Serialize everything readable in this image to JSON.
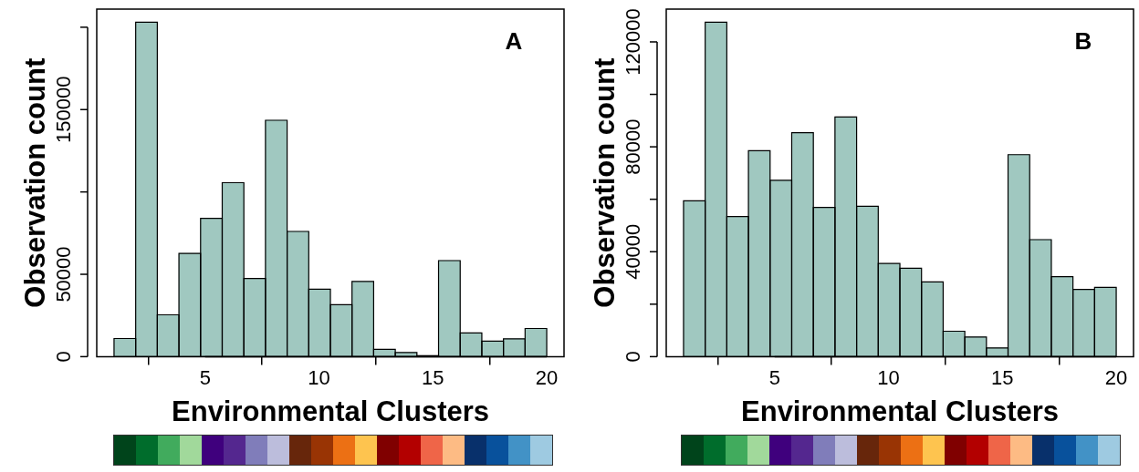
{
  "chart_data": [
    {
      "type": "histogram",
      "title": "A",
      "xlabel": "Environmental Clusters",
      "ylabel": "Observation count",
      "color": "#a0c8c0",
      "bins": [
        1,
        1.95,
        2.9,
        3.85,
        4.8,
        5.75,
        6.7,
        7.65,
        8.6,
        9.55,
        10.5,
        11.45,
        12.4,
        13.35,
        14.3,
        15.25,
        16.2,
        17.15,
        18.1,
        19.05,
        20
      ],
      "values": [
        11000,
        203000,
        25400,
        62700,
        84000,
        105600,
        47500,
        143500,
        76000,
        41000,
        31500,
        45600,
        4400,
        2500,
        600,
        58300,
        14400,
        9400,
        10800,
        17100
      ],
      "xlim": [
        0.24,
        20.76
      ],
      "xticks": [
        5,
        10,
        15,
        20
      ],
      "ylim": [
        0,
        211000
      ],
      "yticks": [
        0,
        50000,
        {
          "value": 100000,
          "label": null
        },
        150000,
        {
          "value": 200000,
          "label": null
        }
      ]
    },
    {
      "type": "histogram",
      "title": "B",
      "xlabel": "Environmental Clusters",
      "ylabel": "Observation count",
      "color": "#a0c8c0",
      "bins": [
        1,
        1.95,
        2.9,
        3.85,
        4.8,
        5.75,
        6.7,
        7.65,
        8.6,
        9.55,
        10.5,
        11.45,
        12.4,
        13.35,
        14.3,
        15.25,
        16.2,
        17.15,
        18.1,
        19.05,
        20
      ],
      "values": [
        59400,
        127500,
        53400,
        78500,
        67200,
        85400,
        56900,
        91400,
        57300,
        35500,
        33700,
        28500,
        9700,
        7500,
        3300,
        77000,
        44600,
        30500,
        25600,
        26400
      ],
      "xlim": [
        0.24,
        20.76
      ],
      "xticks": [
        5,
        10,
        15,
        20
      ],
      "ylim": [
        0,
        132500
      ],
      "yticks": [
        0,
        {
          "value": 20000,
          "label": null
        },
        40000,
        {
          "value": 60000,
          "label": null
        },
        80000,
        {
          "value": 100000,
          "label": null
        },
        120000
      ]
    }
  ]
}
